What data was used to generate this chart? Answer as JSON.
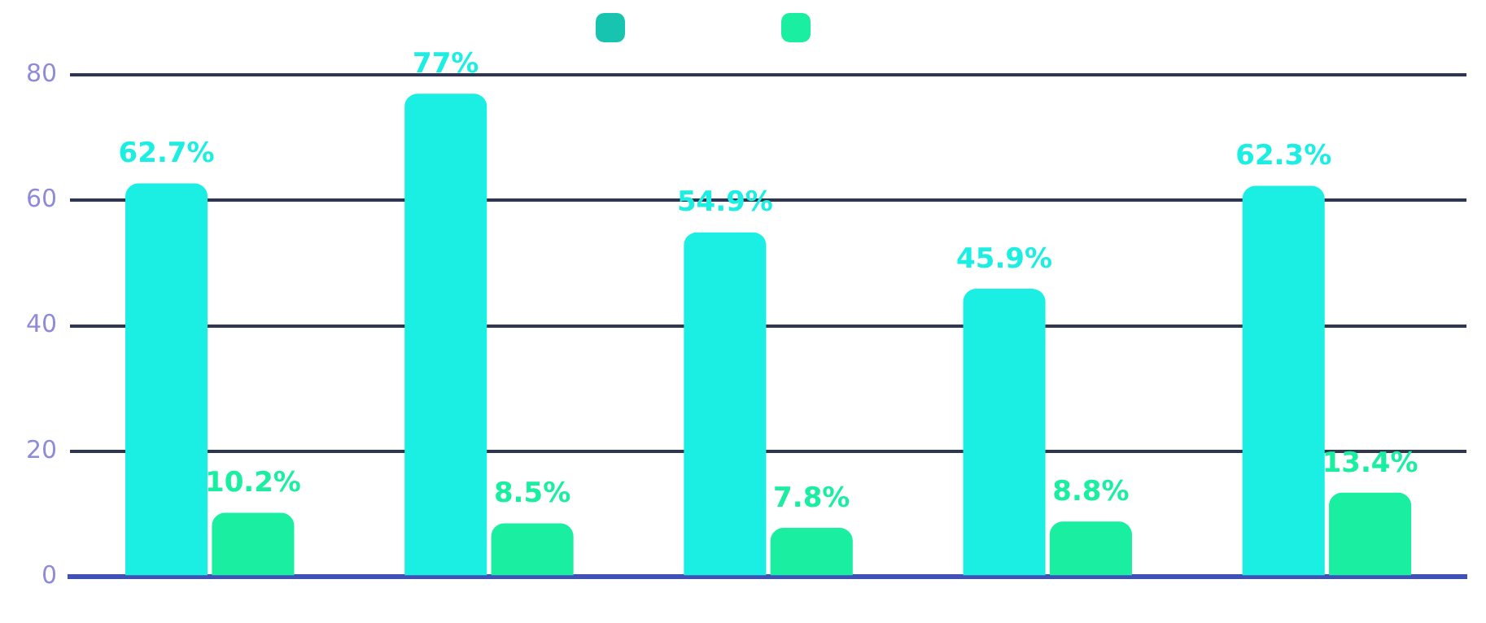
{
  "chart_data": {
    "type": "bar",
    "categories": [
      null,
      null,
      null,
      null,
      null
    ],
    "series": [
      {
        "color": "#1beee2",
        "values": [
          62.7,
          77,
          54.9,
          45.9,
          62.3
        ],
        "value_labels": [
          "62.7%",
          "77%",
          "54.9%",
          "45.9%",
          "62.3%"
        ]
      },
      {
        "color": "#1aeea0",
        "values": [
          10.2,
          8.5,
          7.8,
          8.8,
          13.4
        ],
        "value_labels": [
          "10.2%",
          "8.5%",
          "7.8%",
          "8.8%",
          "13.4%"
        ]
      }
    ],
    "ylim": [
      0,
      80
    ],
    "yticks": [
      0,
      20,
      40,
      60,
      80
    ],
    "grid": "y"
  }
}
